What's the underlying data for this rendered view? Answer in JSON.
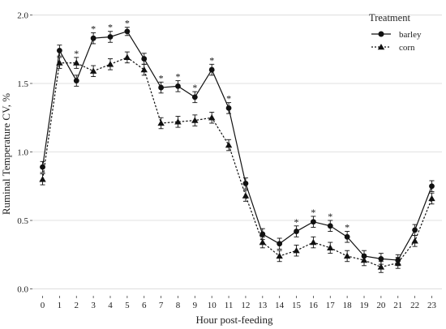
{
  "chart_data": {
    "type": "line",
    "title": "",
    "xlabel": "Hour post-feeding",
    "ylabel": "Ruminal Temperature CV, %",
    "x": [
      0,
      1,
      2,
      3,
      4,
      5,
      6,
      7,
      8,
      9,
      10,
      11,
      12,
      13,
      14,
      15,
      16,
      17,
      18,
      19,
      20,
      21,
      22,
      23
    ],
    "x_tick_labels": [
      "0",
      "1",
      "2",
      "3",
      "4",
      "5",
      "6",
      "7",
      "8",
      "9",
      "10",
      "11",
      "12",
      "13",
      "14",
      "15",
      "16",
      "17",
      "18",
      "19",
      "20",
      "21",
      "22",
      "23"
    ],
    "ylim": [
      -0.05,
      2.05
    ],
    "y_ticks": [
      0.0,
      0.5,
      1.0,
      1.5,
      2.0
    ],
    "y_tick_labels": [
      "0.0",
      "0.5",
      "1.0",
      "1.5",
      "2.0"
    ],
    "grid": true,
    "legend": {
      "title": "Treatment",
      "position": "top-right",
      "entries": [
        "barley",
        "corn"
      ]
    },
    "series": [
      {
        "name": "barley",
        "line_style": "solid",
        "marker": "circle",
        "values": [
          0.89,
          1.74,
          1.52,
          1.83,
          1.84,
          1.88,
          1.68,
          1.47,
          1.48,
          1.4,
          1.6,
          1.32,
          0.77,
          0.4,
          0.33,
          0.42,
          0.49,
          0.46,
          0.38,
          0.24,
          0.22,
          0.21,
          0.43,
          0.75
        ],
        "errors": [
          0.04,
          0.04,
          0.04,
          0.04,
          0.04,
          0.03,
          0.04,
          0.04,
          0.04,
          0.04,
          0.04,
          0.04,
          0.04,
          0.04,
          0.04,
          0.04,
          0.04,
          0.04,
          0.04,
          0.04,
          0.04,
          0.04,
          0.04,
          0.04
        ]
      },
      {
        "name": "corn",
        "line_style": "dotted",
        "marker": "triangle",
        "values": [
          0.8,
          1.65,
          1.65,
          1.59,
          1.64,
          1.69,
          1.6,
          1.21,
          1.22,
          1.23,
          1.25,
          1.05,
          0.68,
          0.34,
          0.24,
          0.28,
          0.34,
          0.3,
          0.24,
          0.21,
          0.16,
          0.19,
          0.35,
          0.66
        ],
        "errors": [
          0.04,
          0.04,
          0.04,
          0.04,
          0.04,
          0.04,
          0.04,
          0.04,
          0.04,
          0.04,
          0.04,
          0.04,
          0.04,
          0.04,
          0.04,
          0.04,
          0.04,
          0.04,
          0.04,
          0.04,
          0.04,
          0.04,
          0.04,
          0.04
        ]
      }
    ],
    "significance_marker": "*",
    "significant_x": [
      2,
      3,
      4,
      5,
      7,
      8,
      9,
      10,
      11,
      15,
      16,
      17,
      18
    ]
  }
}
